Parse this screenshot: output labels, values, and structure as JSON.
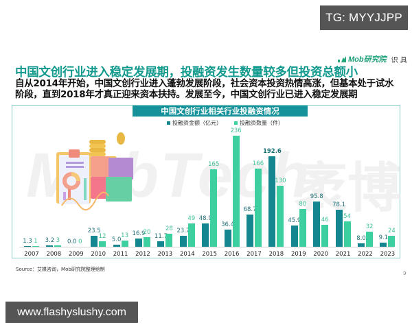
{
  "overlay": {
    "tg_label": "TG: MYYJJPP",
    "site_label": "www.flashyslushy.com"
  },
  "logo": {
    "brand": "Mob研究院",
    "stamp": "识 具"
  },
  "slide": {
    "title": "中国文创行业进入稳定发展期，投融资发生数量较多但投资总额小",
    "subtitle": "自从2014年开始，中国文创行业进入蓬勃发展阶段，社会资本投资热情高涨，但基本处于试水阶段，直到2018年才真正迎来资本扶持。发展至今，中国文创行业已进入稳定发展期",
    "source": "Source：艾媒咨询，Mob研究院整理绘制",
    "page_number": "9",
    "watermark": "MobTech",
    "watermark_cn": "袤博"
  },
  "colors": {
    "amount": "#13868f",
    "count": "#3dcfa0",
    "title_teal": "#139a8e",
    "chart_title_bg": "#15929a"
  },
  "chart_data": {
    "type": "bar",
    "title": "中国文创行业相关行业投融资情况",
    "xlabel": "",
    "ylabel": "",
    "categories": [
      "2007",
      "2008",
      "2009",
      "2010",
      "2011",
      "2012",
      "2013",
      "2014",
      "2015",
      "2016",
      "2017",
      "2018",
      "2019",
      "2020",
      "2021",
      "2022",
      "2023"
    ],
    "series": [
      {
        "name": "投融资金额（亿元）",
        "values": [
          1.3,
          3.2,
          0.0,
          23.5,
          5.0,
          16.9,
          11.7,
          23.7,
          48.9,
          36.4,
          68.7,
          192.6,
          45.9,
          95.8,
          78.1,
          8.0,
          9.1
        ]
      },
      {
        "name": "投融资数量（件）",
        "values": [
          1,
          3,
          0,
          12,
          13,
          20,
          28,
          49,
          165,
          236,
          166,
          130,
          80,
          46,
          54,
          32,
          24
        ]
      }
    ],
    "legend_position": "top",
    "grid": false,
    "ylim": [
      0,
      250
    ]
  }
}
